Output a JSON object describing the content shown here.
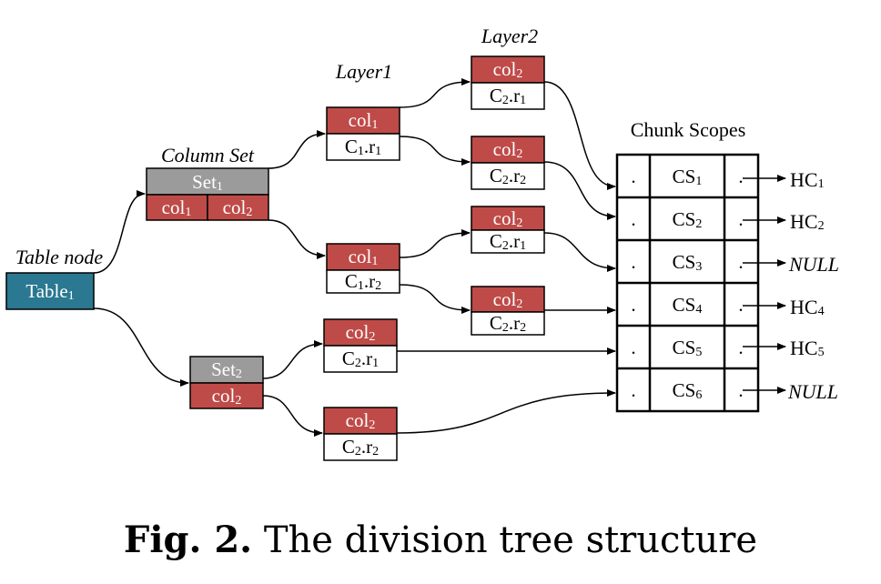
{
  "labels": {
    "table_node": "Table node",
    "column_set": "Column Set",
    "layer1": "Layer1",
    "layer2": "Layer2",
    "chunk_scopes": "Chunk Scopes"
  },
  "table": {
    "name": "Table",
    "sub": "1"
  },
  "set1": {
    "name": "Set",
    "sub": "1",
    "cols": [
      {
        "name": "col",
        "sub": "1"
      },
      {
        "name": "col",
        "sub": "2"
      }
    ]
  },
  "set2": {
    "name": "Set",
    "sub": "2",
    "col": {
      "name": "col",
      "sub": "2"
    }
  },
  "layer1_nodes": [
    {
      "col": "col",
      "col_sub": "1",
      "range": "C",
      "range_sub": "1",
      "r": "r",
      "r_sub": "1"
    },
    {
      "col": "col",
      "col_sub": "1",
      "range": "C",
      "range_sub": "1",
      "r": "r",
      "r_sub": "2"
    },
    {
      "col": "col",
      "col_sub": "2",
      "range": "C",
      "range_sub": "2",
      "r": "r",
      "r_sub": "1"
    },
    {
      "col": "col",
      "col_sub": "2",
      "range": "C",
      "range_sub": "2",
      "r": "r",
      "r_sub": "2"
    }
  ],
  "layer2_nodes": [
    {
      "col": "col",
      "col_sub": "2",
      "range": "C",
      "range_sub": "2",
      "r": "r",
      "r_sub": "1"
    },
    {
      "col": "col",
      "col_sub": "2",
      "range": "C",
      "range_sub": "2",
      "r": "r",
      "r_sub": "2"
    },
    {
      "col": "col",
      "col_sub": "2",
      "range": "C",
      "range_sub": "2",
      "r": "r",
      "r_sub": "1"
    },
    {
      "col": "col",
      "col_sub": "2",
      "range": "C",
      "range_sub": "2",
      "r": "r",
      "r_sub": "2"
    }
  ],
  "chunk_rows": [
    {
      "dot_left": ".",
      "cs": "CS",
      "cs_sub": "1",
      "dot_right": ".",
      "target": "HC",
      "target_sub": "1",
      "italic": false
    },
    {
      "dot_left": ".",
      "cs": "CS",
      "cs_sub": "2",
      "dot_right": ".",
      "target": "HC",
      "target_sub": "2",
      "italic": false
    },
    {
      "dot_left": ".",
      "cs": "CS",
      "cs_sub": "3",
      "dot_right": ".",
      "target": "NULL",
      "target_sub": "",
      "italic": true
    },
    {
      "dot_left": ".",
      "cs": "CS",
      "cs_sub": "4",
      "dot_right": ".",
      "target": "HC",
      "target_sub": "4",
      "italic": false
    },
    {
      "dot_left": ".",
      "cs": "CS",
      "cs_sub": "5",
      "dot_right": ".",
      "target": "HC",
      "target_sub": "5",
      "italic": false
    },
    {
      "dot_left": ".",
      "cs": "CS",
      "cs_sub": "6",
      "dot_right": ".",
      "target": "NULL",
      "target_sub": "",
      "italic": true
    }
  ],
  "caption": {
    "prefix": "Fig. 2.",
    "text": "The division tree structure"
  },
  "colors": {
    "col_fill": "#be4b48",
    "set_fill": "#9b9b9b",
    "table_fill": "#2a7891"
  }
}
